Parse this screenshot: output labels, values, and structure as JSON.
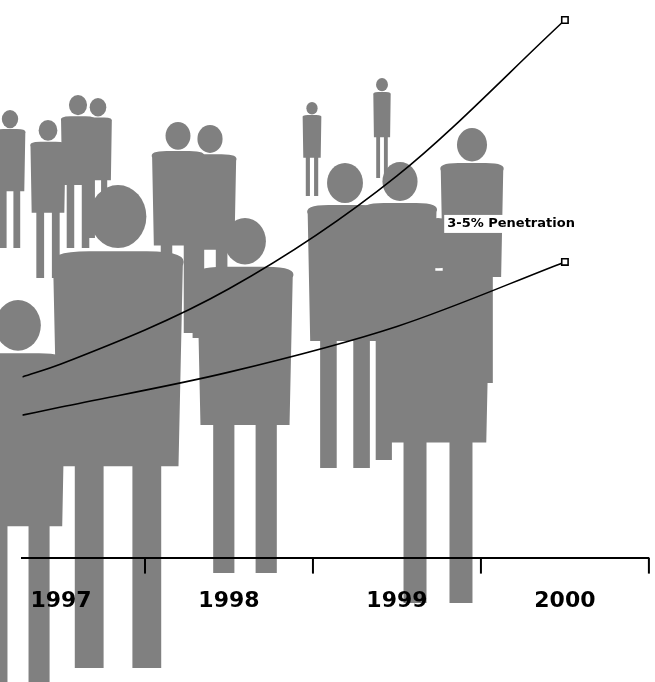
{
  "chart_data": {
    "type": "line",
    "x": [
      1996.77,
      1997,
      1998,
      1999,
      2000
    ],
    "series": [
      {
        "color": "#000000",
        "marker": "square",
        "line_style": "solid",
        "values": [
          33.6,
          36,
          50,
          71,
          100
        ]
      },
      {
        "color": "#000000",
        "marker": "square",
        "line_style": "solid",
        "values": [
          26.5,
          28,
          34.5,
          43,
          55
        ]
      }
    ],
    "xlim": [
      1996.77,
      2000.5
    ],
    "xticks": [
      1997,
      1998,
      1999,
      2000
    ],
    "ylim": [
      0,
      100
    ],
    "annotations": [
      "3-5% Penetration"
    ],
    "grid": false,
    "tick_labels": "x"
  }
}
